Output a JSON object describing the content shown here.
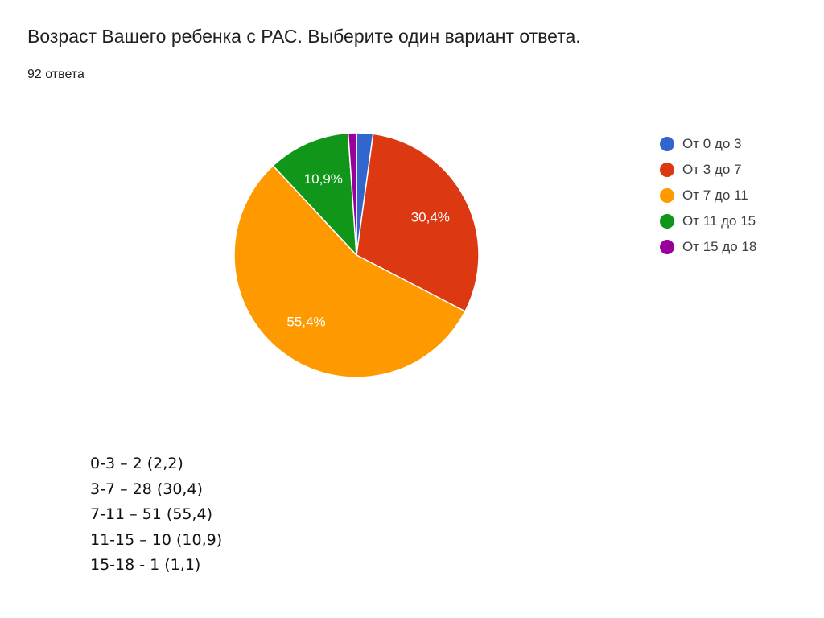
{
  "title": "Возраст Вашего ребенка с РАС. Выберите один вариант ответа.",
  "subtitle": "92 ответа",
  "chart_data": {
    "type": "pie",
    "total_responses": 92,
    "start_angle_deg": 90,
    "direction": "clockwise",
    "legend_position": "right",
    "slices": [
      {
        "label": "От 0 до 3",
        "value": 2,
        "percent": 2.2,
        "percent_label": "",
        "color": "#3366CC"
      },
      {
        "label": "От 3 до 7",
        "value": 28,
        "percent": 30.4,
        "percent_label": "30,4%",
        "color": "#DC3912"
      },
      {
        "label": "От 7 до 11",
        "value": 51,
        "percent": 55.4,
        "percent_label": "55,4%",
        "color": "#FF9900"
      },
      {
        "label": "От 11 до 15",
        "value": 10,
        "percent": 10.9,
        "percent_label": "10,9%",
        "color": "#109618"
      },
      {
        "label": "От 15 до 18",
        "value": 1,
        "percent": 1.1,
        "percent_label": "",
        "color": "#990099"
      }
    ]
  },
  "summary": [
    "0-3 – 2 (2,2)",
    "3-7 – 28 (30,4)",
    "7-11 – 51 (55,4)",
    "11-15 – 10 (10,9)",
    "15-18 - 1 (1,1)"
  ]
}
